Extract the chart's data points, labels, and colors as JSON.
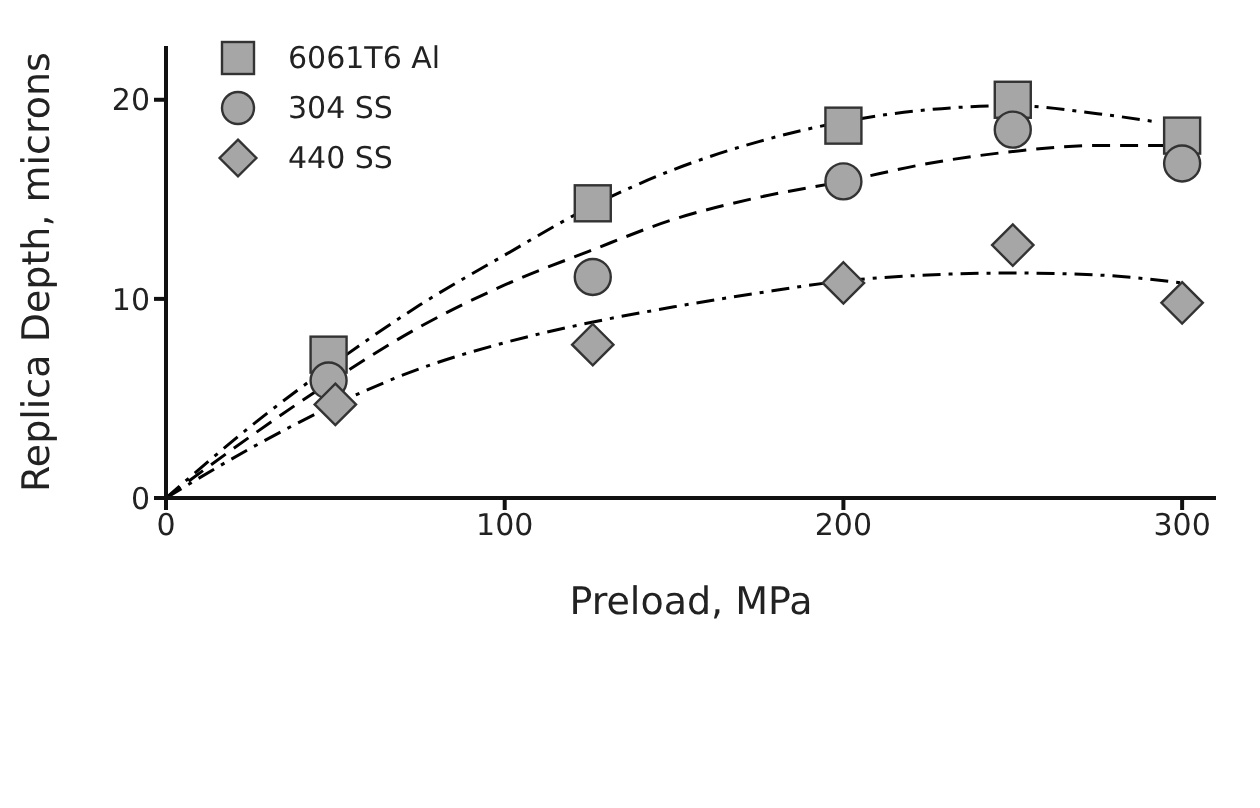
{
  "chart_data": {
    "type": "scatter",
    "xlabel": "Preload, MPa",
    "ylabel": "Replica Depth, microns",
    "xlim": [
      0,
      310
    ],
    "xticks": [
      0,
      100,
      200,
      300
    ],
    "ylim": [
      0,
      22.7
    ],
    "yticks": [
      0,
      10,
      20
    ],
    "grid": false,
    "legend": "top left",
    "series": [
      {
        "name": "6061T6 Al",
        "marker": "square",
        "color": "#a6a6a6",
        "x": [
          48,
          126,
          200,
          250,
          300
        ],
        "values": [
          7.2,
          14.8,
          18.7,
          20.0,
          18.2
        ]
      },
      {
        "name": "304 SS",
        "marker": "circle",
        "color": "#a6a6a6",
        "x": [
          48,
          126,
          200,
          250,
          300
        ],
        "values": [
          5.9,
          11.1,
          15.9,
          18.5,
          16.8
        ]
      },
      {
        "name": "440 SS",
        "marker": "diamond",
        "color": "#a6a6a6",
        "x": [
          50,
          126,
          200,
          250,
          300
        ],
        "values": [
          4.7,
          7.7,
          10.8,
          12.7,
          9.8
        ]
      },
      {
        "type": "line",
        "marker": "none",
        "line_style": "dashdot",
        "color": "#000000",
        "x": [
          0,
          25,
          50,
          75,
          100,
          125,
          150,
          175,
          200,
          225,
          250,
          275,
          292
        ],
        "values": [
          0,
          3.6,
          6.8,
          9.7,
          12.2,
          14.6,
          16.5,
          17.9,
          18.9,
          19.5,
          19.7,
          19.3,
          18.9
        ]
      },
      {
        "type": "line",
        "marker": "none",
        "line_style": "dashed",
        "color": "#000000",
        "x": [
          0,
          25,
          50,
          75,
          100,
          125,
          150,
          175,
          200,
          225,
          250,
          275,
          300
        ],
        "values": [
          0,
          3.1,
          6.0,
          8.6,
          10.7,
          12.4,
          14.0,
          15.1,
          15.9,
          16.8,
          17.4,
          17.7,
          17.7
        ]
      },
      {
        "type": "line",
        "marker": "none",
        "line_style": "dashdot",
        "color": "#000000",
        "x": [
          0,
          25,
          50,
          75,
          100,
          125,
          150,
          175,
          200,
          225,
          250,
          275,
          300
        ],
        "values": [
          0,
          2.5,
          4.7,
          6.5,
          7.8,
          8.8,
          9.6,
          10.3,
          10.9,
          11.2,
          11.3,
          11.2,
          10.8
        ]
      }
    ]
  }
}
